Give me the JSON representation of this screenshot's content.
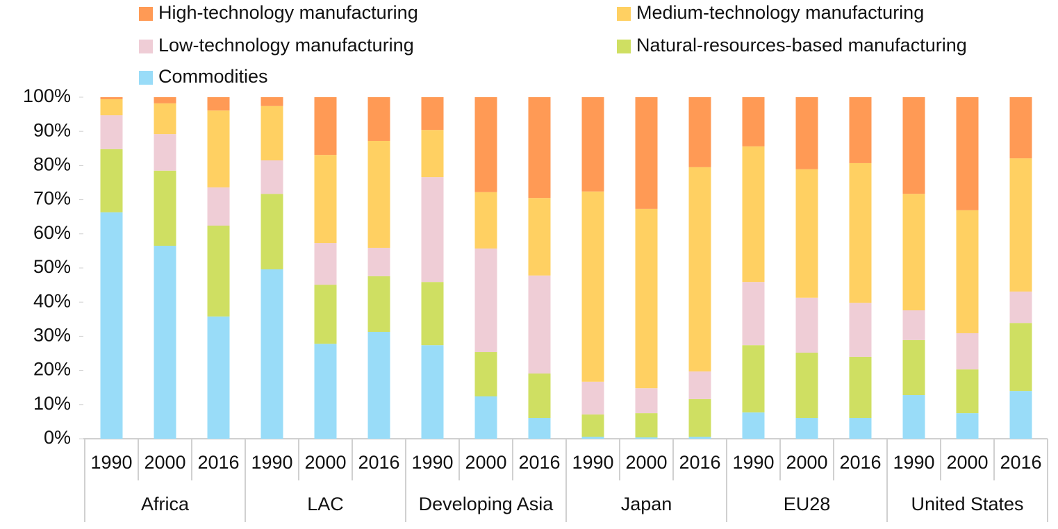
{
  "chart_data": {
    "type": "stacked-bar",
    "categories": [
      "1990",
      "2000",
      "2016",
      "1990",
      "2000",
      "2016",
      "1990",
      "2000",
      "2016",
      "1990",
      "2000",
      "2016",
      "1990",
      "2000",
      "2016",
      "1990",
      "2000",
      "2016"
    ],
    "groups": [
      "Africa",
      "LAC",
      "Developing Asia",
      "Japan",
      "EU28",
      "United States"
    ],
    "series": [
      {
        "name": "Commodities",
        "color": "#99dcf8",
        "values": [
          66.3,
          56.5,
          35.8,
          49.6,
          27.8,
          31.3,
          27.4,
          12.4,
          6.1,
          0.6,
          0.4,
          0.6,
          7.7,
          6.1,
          6.1,
          12.8,
          7.5,
          14
        ]
      },
      {
        "name": "Natural-resources-based manufacturing",
        "color": "#cfdf62",
        "values": [
          18.5,
          22,
          26.6,
          22.1,
          17.3,
          16.3,
          18.5,
          13,
          13,
          6.5,
          7.1,
          11,
          19.7,
          19.1,
          17.9,
          16.1,
          12.8,
          19.9
        ]
      },
      {
        "name": "Low-technology manufacturing",
        "color": "#efcdd6",
        "values": [
          9.9,
          10.7,
          11.2,
          9.8,
          12.2,
          8.3,
          30.7,
          30.3,
          28.7,
          9.6,
          7.3,
          8.1,
          18.5,
          16.1,
          15.8,
          8.7,
          10.6,
          9.2
        ]
      },
      {
        "name": "Medium-technology manufacturing",
        "color": "#ffd062",
        "values": [
          4.7,
          9,
          22.5,
          15.9,
          25.8,
          31.3,
          13.8,
          16.5,
          22.7,
          55.7,
          52.5,
          59.8,
          39.7,
          37.6,
          40.9,
          34.1,
          36,
          39
        ]
      },
      {
        "name": "High-technology manufacturing",
        "color": "#ff9a55",
        "values": [
          0.6,
          1.8,
          3.9,
          2.6,
          16.9,
          12.8,
          9.6,
          27.8,
          29.5,
          27.6,
          32.7,
          20.5,
          14.4,
          21.1,
          19.3,
          28.3,
          33.1,
          17.9
        ]
      }
    ],
    "ylim": [
      0,
      100
    ],
    "yticks": [
      {
        "value": 0,
        "label": "0%"
      },
      {
        "value": 10,
        "label": "10%"
      },
      {
        "value": 20,
        "label": "20%"
      },
      {
        "value": 30,
        "label": "30%"
      },
      {
        "value": 40,
        "label": "40%"
      },
      {
        "value": 50,
        "label": "50%"
      },
      {
        "value": 60,
        "label": "60%"
      },
      {
        "value": 70,
        "label": "70%"
      },
      {
        "value": 80,
        "label": "80%"
      },
      {
        "value": 90,
        "label": "90%"
      },
      {
        "value": 100,
        "label": "100%"
      }
    ]
  }
}
